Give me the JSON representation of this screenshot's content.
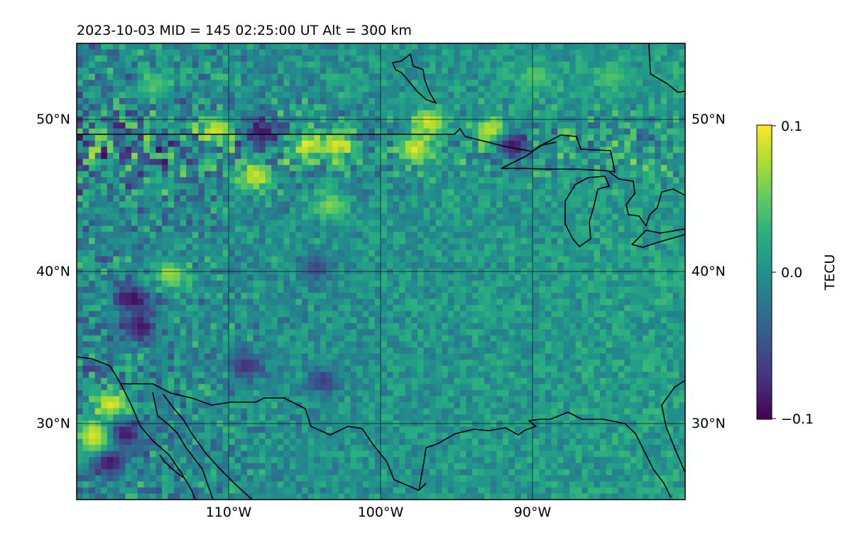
{
  "title": "2023-10-03  MID = 145    02:25:00  UT  Alt = 300 km",
  "map": {
    "lat_labels": [
      "30°N",
      "40°N",
      "50°N"
    ],
    "lon_labels": [
      "110°W",
      "100°W",
      "90°W"
    ],
    "lat_values": [
      30,
      40,
      50
    ],
    "lon_values": [
      -110,
      -100,
      -90
    ],
    "extent": {
      "lon_min": -120,
      "lon_max": -80,
      "lat_min": 25,
      "lat_max": 55
    },
    "gridlines": true,
    "coastlines": true,
    "borders": true
  },
  "colorbar": {
    "label": "TECU",
    "colormap": "viridis",
    "vmin": -0.1,
    "vmax": 0.1,
    "tick_labels": [
      "0.1",
      "0.0",
      "−0.1"
    ],
    "tick_values": [
      0.1,
      0.0,
      -0.1
    ]
  },
  "chart_data": {
    "type": "heatmap",
    "title": "2023-10-03  MID = 145    02:25:00  UT  Alt = 300 km",
    "xlabel": "",
    "ylabel": "",
    "x_ticks": [
      "110°W",
      "100°W",
      "90°W"
    ],
    "y_ticks": [
      "30°N",
      "40°N",
      "50°N"
    ],
    "xlim": [
      -120,
      -80
    ],
    "ylim": [
      25,
      55
    ],
    "value_range": [
      -0.1,
      0.1
    ],
    "units": "TECU",
    "grid": true,
    "hotspots": [
      {
        "lon": -119,
        "lat": 29.5,
        "value": 0.1
      },
      {
        "lon": -118.5,
        "lat": 28.8,
        "value": 0.1
      },
      {
        "lon": -118,
        "lat": 31.5,
        "value": 0.1
      },
      {
        "lon": -117,
        "lat": 29.5,
        "value": -0.1
      },
      {
        "lon": -118,
        "lat": 27.7,
        "value": -0.1
      },
      {
        "lon": -111,
        "lat": 49.5,
        "value": 0.1
      },
      {
        "lon": -108.5,
        "lat": 46.5,
        "value": 0.1
      },
      {
        "lon": -103,
        "lat": 48.5,
        "value": 0.1
      },
      {
        "lon": -105,
        "lat": 48.5,
        "value": 0.1
      },
      {
        "lon": -108,
        "lat": 49.3,
        "value": -0.1
      },
      {
        "lon": -98,
        "lat": 48.2,
        "value": 0.1
      },
      {
        "lon": -97,
        "lat": 50,
        "value": 0.1
      },
      {
        "lon": -93,
        "lat": 49.4,
        "value": 0.1
      },
      {
        "lon": -91.5,
        "lat": 48.5,
        "value": -0.1
      },
      {
        "lon": -103.5,
        "lat": 44.5,
        "value": 0.07
      },
      {
        "lon": -116.5,
        "lat": 38.3,
        "value": -0.1
      },
      {
        "lon": -116,
        "lat": 36.5,
        "value": -0.1
      },
      {
        "lon": -114,
        "lat": 40,
        "value": 0.08
      },
      {
        "lon": -109,
        "lat": 34,
        "value": -0.08
      },
      {
        "lon": -104.5,
        "lat": 40.5,
        "value": -0.06
      },
      {
        "lon": -104,
        "lat": 33,
        "value": -0.07
      },
      {
        "lon": -115,
        "lat": 52.5,
        "value": 0.05
      },
      {
        "lon": -90,
        "lat": 53,
        "value": 0.05
      },
      {
        "lon": -85,
        "lat": 53,
        "value": 0.05
      }
    ]
  }
}
